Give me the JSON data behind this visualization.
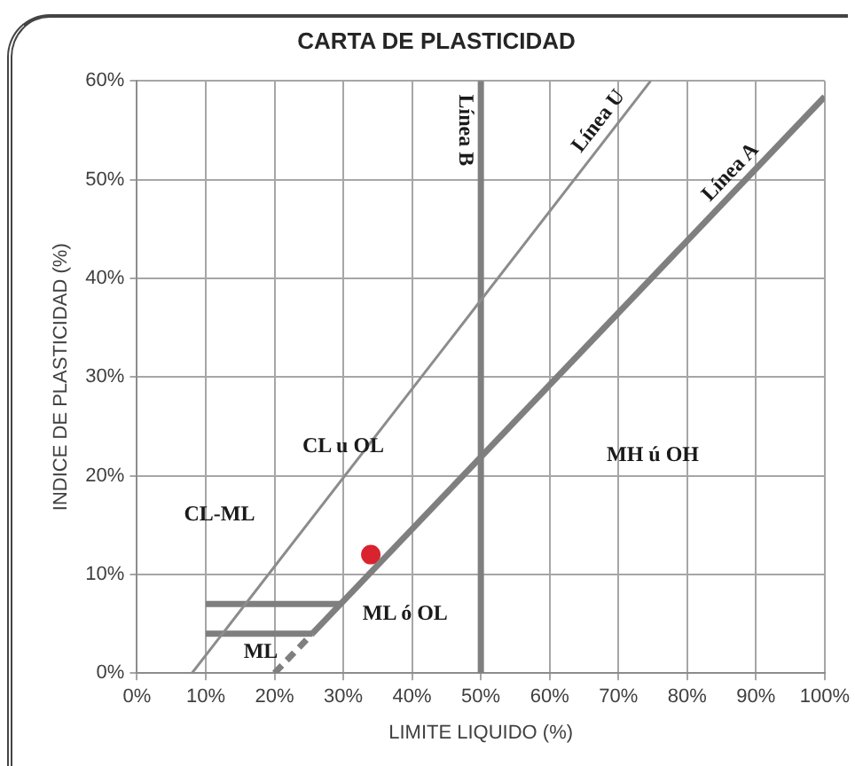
{
  "chart_data": {
    "type": "line",
    "title": "CARTA DE PLASTICIDAD",
    "xlabel": "LIMITE LIQUIDO (%)",
    "ylabel": "INDICE DE PLASTICIDAD (%)",
    "xlim": [
      0,
      100
    ],
    "xticks": [
      {
        "value": 0,
        "label": "0%"
      },
      {
        "value": 10,
        "label": "10%"
      },
      {
        "value": 20,
        "label": "20%"
      },
      {
        "value": 30,
        "label": "30%"
      },
      {
        "value": 40,
        "label": "40%"
      },
      {
        "value": 50,
        "label": "50%"
      },
      {
        "value": 60,
        "label": "60%"
      },
      {
        "value": 70,
        "label": "70%"
      },
      {
        "value": 80,
        "label": "80%"
      },
      {
        "value": 90,
        "label": "90%"
      },
      {
        "value": 100,
        "label": "100%"
      }
    ],
    "ylim": [
      0,
      60
    ],
    "yticks": [
      {
        "value": 0,
        "label": "0%"
      },
      {
        "value": 10,
        "label": "10%"
      },
      {
        "value": 20,
        "label": "20%"
      },
      {
        "value": 30,
        "label": "30%"
      },
      {
        "value": 40,
        "label": "40%"
      },
      {
        "value": 50,
        "label": "50%"
      },
      {
        "value": 60,
        "label": "60%"
      }
    ],
    "grid": true,
    "legend": false,
    "marker": "none",
    "series": [
      {
        "color": "#7f7f7f",
        "x": [
          25.5,
          100
        ],
        "values": [
          4,
          58.4
        ]
      },
      {
        "color": "#7f7f7f",
        "line_style": "dashed",
        "x": [
          20,
          25.5
        ],
        "values": [
          0,
          4
        ]
      },
      {
        "color": "#8c8c8c",
        "x": [
          8,
          74.7
        ],
        "values": [
          0,
          60
        ]
      },
      {
        "color": "#7f7f7f",
        "x": [
          50,
          50
        ],
        "values": [
          0,
          60
        ]
      },
      {
        "color": "#7f7f7f",
        "x": [
          10,
          29.6
        ],
        "values": [
          7,
          7
        ]
      },
      {
        "color": "#7f7f7f",
        "x": [
          10,
          25.5
        ],
        "values": [
          4,
          4
        ]
      },
      {
        "type": "scatter",
        "color": "#d9232e",
        "marker": "circle",
        "x": [
          34
        ],
        "values": [
          12
        ]
      }
    ],
    "annotations": [
      {
        "text": "Línea B",
        "x": 50,
        "y": 55
      },
      {
        "text": "Línea U",
        "x": 69,
        "y": 54.9
      },
      {
        "text": "Línea A",
        "x": 88,
        "y": 49.6
      },
      "CL u OL",
      "MH ú OH",
      "ML ó OL",
      "CL-ML",
      "ML"
    ]
  }
}
